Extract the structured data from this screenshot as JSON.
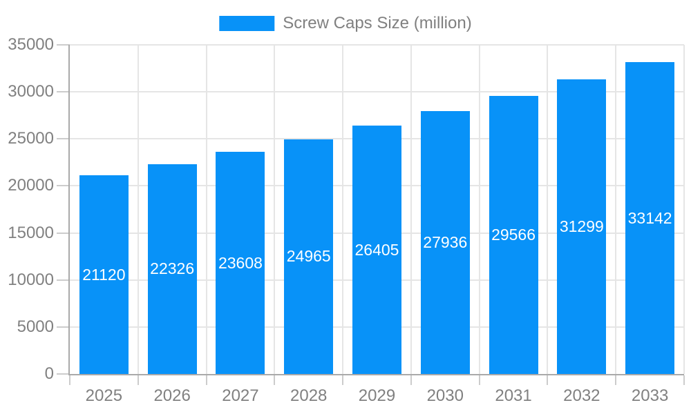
{
  "legend": {
    "label": "Screw Caps Size (million)"
  },
  "chart_data": {
    "type": "bar",
    "title": "",
    "xlabel": "",
    "ylabel": "",
    "legend_position": "top",
    "categories": [
      "2025",
      "2026",
      "2027",
      "2028",
      "2029",
      "2030",
      "2031",
      "2032",
      "2033"
    ],
    "series": [
      {
        "name": "Screw Caps Size (million)",
        "values": [
          21120,
          22326,
          23608,
          24965,
          26405,
          27936,
          29566,
          31299,
          33142
        ]
      }
    ],
    "bar_value_labels": [
      "21120",
      "22326",
      "23608",
      "24965",
      "26405",
      "27936",
      "29566",
      "31299",
      "33142"
    ],
    "ylim": [
      0,
      35000
    ],
    "ytick_step": 5000,
    "ytick_labels": [
      "0",
      "5000",
      "10000",
      "15000",
      "20000",
      "25000",
      "30000",
      "35000"
    ],
    "grid": true,
    "colors": {
      "bar": "#0892f8",
      "bar_label": "#ffffff",
      "axis_text": "#808080",
      "grid_line": "#e5e5e5",
      "axis_line": "#a9a9a9",
      "tick": "#cccccc",
      "background": "#ffffff"
    }
  }
}
